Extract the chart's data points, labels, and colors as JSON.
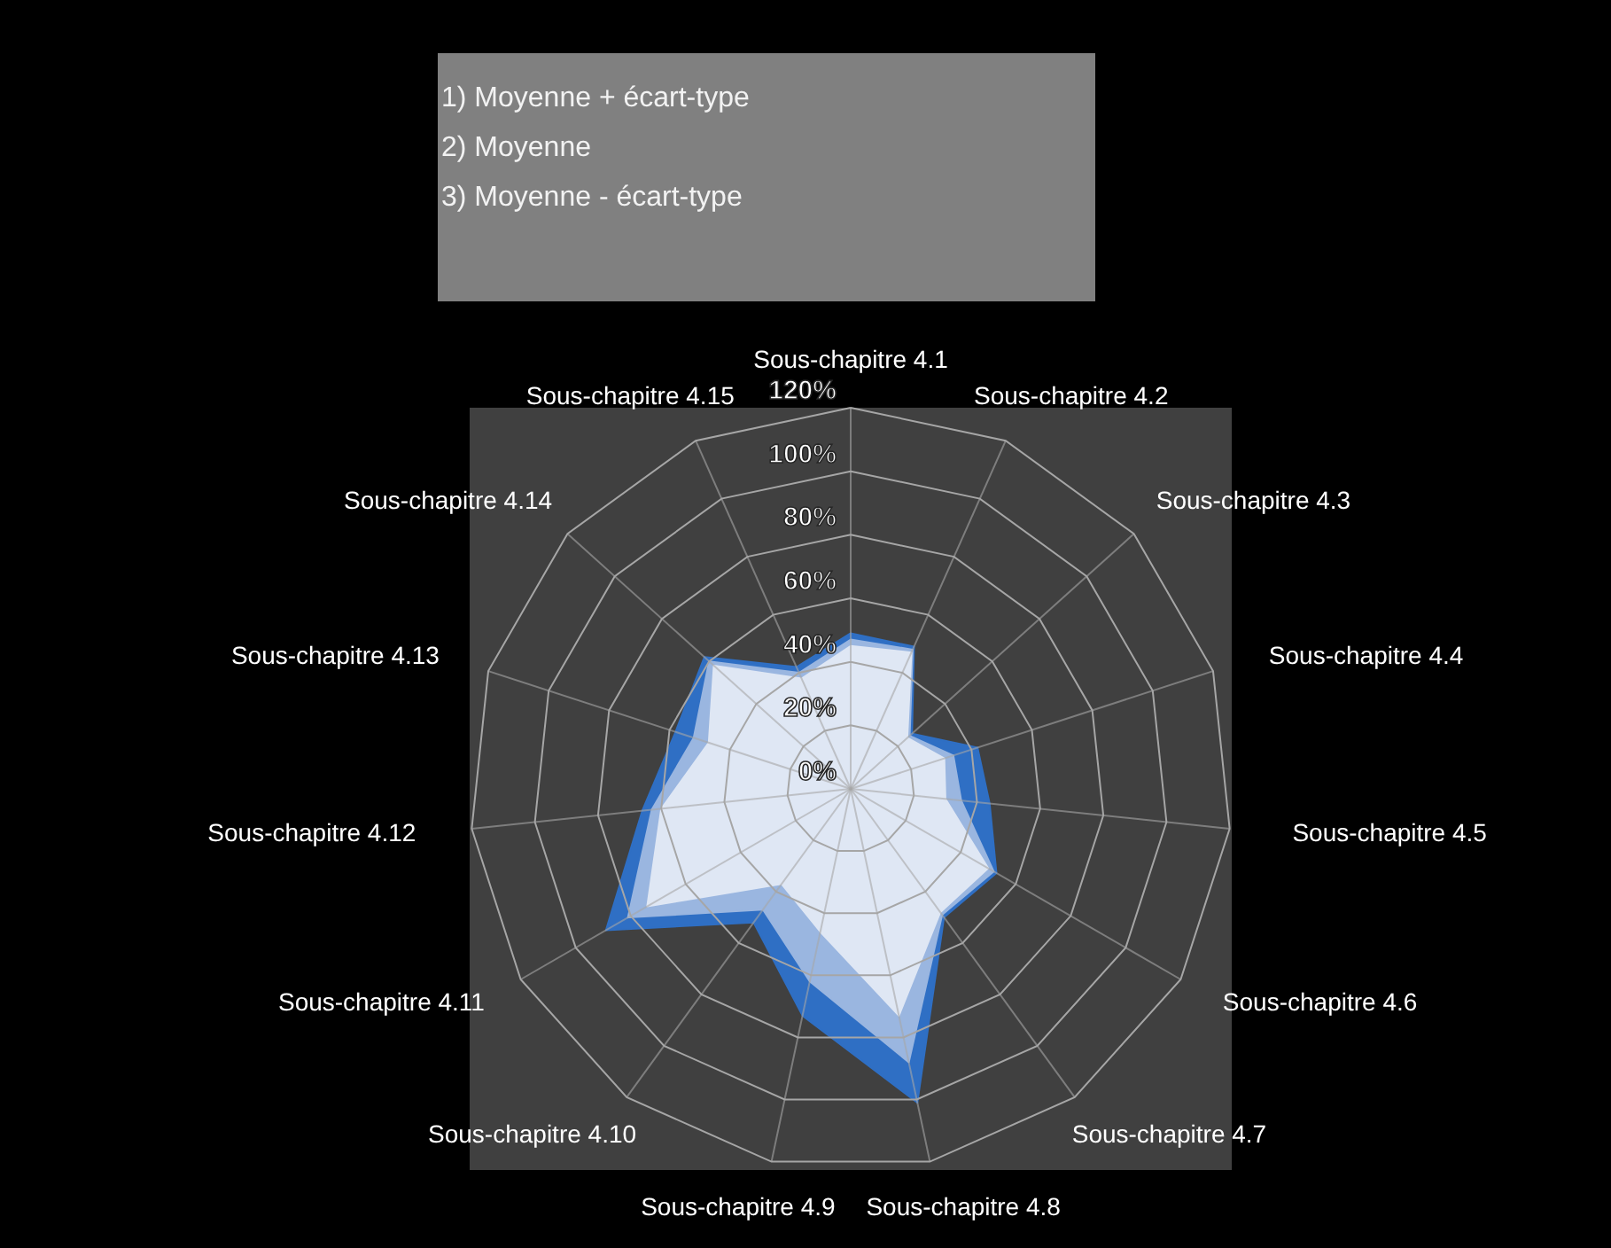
{
  "chart_data": {
    "type": "radar",
    "categories": [
      "Sous-chapitre 4.1",
      "Sous-chapitre 4.2",
      "Sous-chapitre 4.3",
      "Sous-chapitre 4.4",
      "Sous-chapitre 4.5",
      "Sous-chapitre 4.6",
      "Sous-chapitre 4.7",
      "Sous-chapitre 4.8",
      "Sous-chapitre 4.9",
      "Sous-chapitre 4.10",
      "Sous-chapitre 4.11",
      "Sous-chapitre 4.12",
      "Sous-chapitre 4.13",
      "Sous-chapitre 4.14",
      "Sous-chapitre 4.15"
    ],
    "series": [
      {
        "color": "#2f6fc4",
        "values": [
          49,
          49,
          26,
          42,
          44,
          53,
          50,
          101,
          73,
          52,
          89,
          66,
          58,
          62,
          42
        ]
      },
      {
        "color": "#9ab6e0",
        "values": [
          47,
          48,
          25,
          34,
          35,
          52,
          49,
          88,
          62,
          47,
          81,
          63,
          52,
          60,
          40
        ]
      },
      {
        "color": "#dfe7f4",
        "values": [
          45,
          47,
          24,
          31,
          30,
          50,
          48,
          73,
          46,
          37,
          74,
          60,
          47,
          58,
          38
        ]
      }
    ],
    "ylim": [
      0,
      120
    ],
    "yticks": [
      {
        "value": 0,
        "label": "0%"
      },
      {
        "value": 20,
        "label": "20%"
      },
      {
        "value": 40,
        "label": "40%"
      },
      {
        "value": 60,
        "label": "60%"
      },
      {
        "value": 80,
        "label": "80%"
      },
      {
        "value": 100,
        "label": "100%"
      },
      {
        "value": 120,
        "label": "120%"
      }
    ],
    "grid": true,
    "annotations": [
      "1) Moyenne + écart-type",
      "2) Moyenne",
      "3) Moyenne - écart-type"
    ]
  }
}
